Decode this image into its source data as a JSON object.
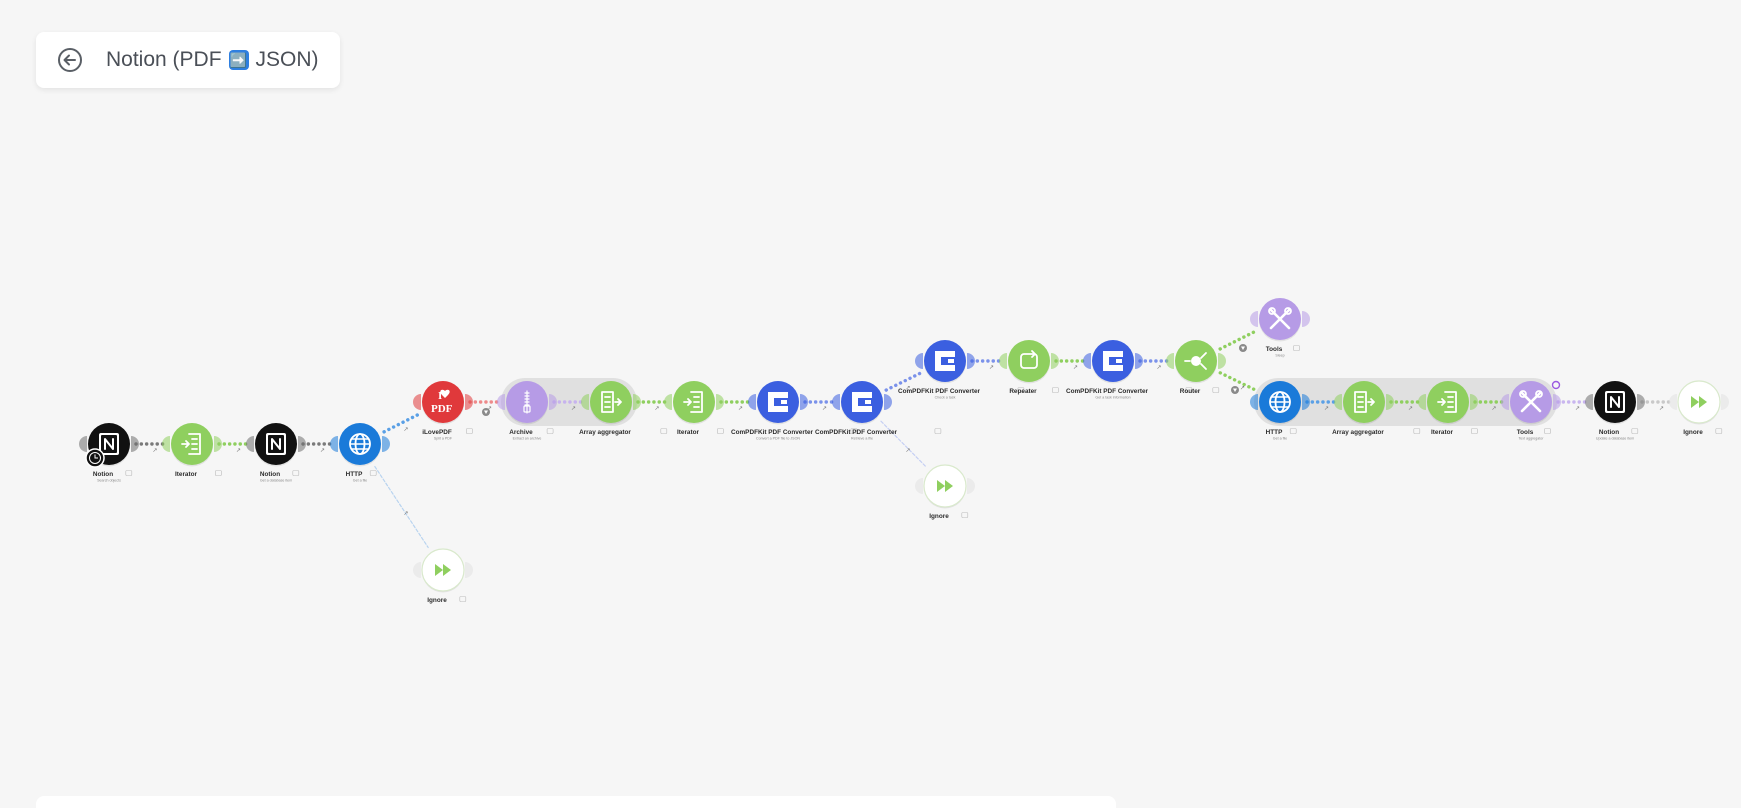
{
  "scenario": {
    "title_before": "Notion (PDF",
    "title_after": "JSON)",
    "emoji": "➡️"
  },
  "colors": {
    "notion": "#111111",
    "flow": "#8fcf5f",
    "http": "#1a7ad9",
    "ilovepdf": "#e0393b",
    "archive": "#b69be6",
    "compdfkit": "#3b5fe0",
    "tools": "#b69be6"
  },
  "nodes": [
    {
      "id": "n1",
      "label": "Notion",
      "sub": "Search objects",
      "icon": "notion-icon",
      "kind": "notion"
    },
    {
      "id": "n2",
      "label": "Iterator",
      "icon": "iterator-icon",
      "kind": "flow"
    },
    {
      "id": "n3",
      "label": "Notion",
      "sub": "Get a database item",
      "icon": "notion-icon",
      "kind": "notion"
    },
    {
      "id": "n4",
      "label": "HTTP",
      "sub": "Get a file",
      "icon": "globe-icon",
      "kind": "http"
    },
    {
      "id": "n5",
      "label": "Ignore",
      "icon": "fast-forward-icon",
      "kind": "ignore"
    },
    {
      "id": "n6",
      "label": "iLovePDF",
      "sub": "Split a PDF",
      "icon": "ilovepdf-icon",
      "kind": "ilovepdf"
    },
    {
      "id": "n7",
      "label": "Archive",
      "sub": "Extract an archive",
      "icon": "zip-icon",
      "kind": "archive"
    },
    {
      "id": "n8",
      "label": "Array aggregator",
      "icon": "aggregator-icon",
      "kind": "flow"
    },
    {
      "id": "n9",
      "label": "Iterator",
      "icon": "iterator-icon",
      "kind": "flow"
    },
    {
      "id": "n10",
      "label": "ComPDFKit PDF Converter",
      "sub": "Convert a PDF file to JSON",
      "icon": "compdfkit-icon",
      "kind": "compdfkit"
    },
    {
      "id": "n11",
      "label": "ComPDFKit PDF Converter",
      "sub": "Retrieve a file",
      "icon": "compdfkit-icon",
      "kind": "compdfkit"
    },
    {
      "id": "n12",
      "label": "Ignore",
      "icon": "fast-forward-icon",
      "kind": "ignore"
    },
    {
      "id": "n13",
      "label": "ComPDFKit PDF Converter",
      "sub": "Check a task",
      "icon": "compdfkit-icon",
      "kind": "compdfkit"
    },
    {
      "id": "n14",
      "label": "Repeater",
      "icon": "repeat-icon",
      "kind": "flow"
    },
    {
      "id": "n15",
      "label": "ComPDFKit PDF Converter",
      "sub": "Get a task information",
      "icon": "compdfkit-icon",
      "kind": "compdfkit"
    },
    {
      "id": "n16",
      "label": "Router",
      "icon": "router-icon",
      "kind": "flow"
    },
    {
      "id": "n17",
      "label": "Tools",
      "sub": "Sleep",
      "icon": "tools-icon",
      "kind": "tools"
    },
    {
      "id": "n18",
      "label": "HTTP",
      "sub": "Get a file",
      "icon": "globe-icon",
      "kind": "http"
    },
    {
      "id": "n19",
      "label": "Array aggregator",
      "icon": "aggregator-icon",
      "kind": "flow"
    },
    {
      "id": "n20",
      "label": "Iterator",
      "icon": "iterator-icon",
      "kind": "flow"
    },
    {
      "id": "n21",
      "label": "Tools",
      "sub": "Text aggregator",
      "icon": "tools-icon",
      "kind": "tools"
    },
    {
      "id": "n22",
      "label": "Notion",
      "sub": "Update a database item",
      "icon": "notion-icon",
      "kind": "notion"
    },
    {
      "id": "n23",
      "label": "Ignore",
      "icon": "fast-forward-icon",
      "kind": "ignore"
    }
  ]
}
